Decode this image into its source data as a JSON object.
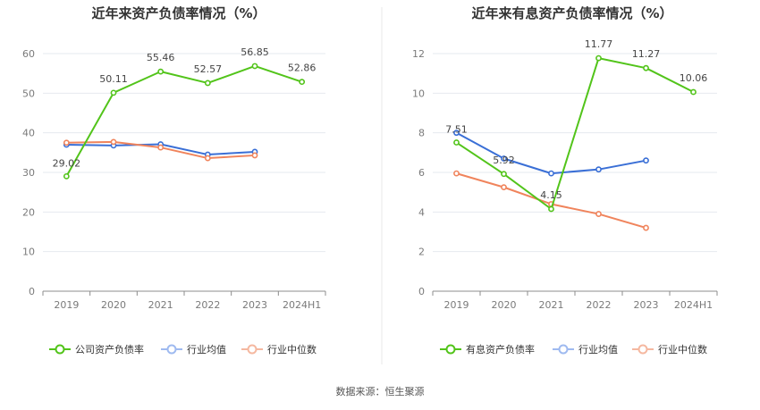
{
  "chart_data": [
    {
      "type": "line",
      "title": "近年来资产负债率情况（%）",
      "categories": [
        "2019",
        "2020",
        "2021",
        "2022",
        "2023",
        "2024H1"
      ],
      "ylim": [
        0,
        60
      ],
      "yticks": [
        0,
        10,
        20,
        30,
        40,
        50,
        60
      ],
      "grid": true,
      "legend_position": "bottom",
      "series": [
        {
          "name": "公司资产负债率",
          "color": "#52c41a",
          "values": [
            29.02,
            50.11,
            55.46,
            52.57,
            56.85,
            52.86
          ],
          "labels": [
            "29.02",
            "50.11",
            "55.46",
            "52.57",
            "56.85",
            "52.86"
          ]
        },
        {
          "name": "行业均值",
          "color": "#3a6fd6",
          "values": [
            37.0,
            36.8,
            37.1,
            34.5,
            35.2,
            null
          ]
        },
        {
          "name": "行业中位数",
          "color": "#f0845c",
          "values": [
            37.5,
            37.7,
            36.3,
            33.6,
            34.3,
            null
          ]
        }
      ]
    },
    {
      "type": "line",
      "title": "近年来有息资产负债率情况（%）",
      "categories": [
        "2019",
        "2020",
        "2021",
        "2022",
        "2023",
        "2024H1"
      ],
      "ylim": [
        0,
        12
      ],
      "yticks": [
        0,
        2,
        4,
        6,
        8,
        10,
        12
      ],
      "grid": true,
      "legend_position": "bottom",
      "series": [
        {
          "name": "有息资产负债率",
          "color": "#52c41a",
          "values": [
            7.51,
            5.92,
            4.15,
            11.77,
            11.27,
            10.06
          ],
          "labels": [
            "7.51",
            "5.92",
            "4.15",
            "11.77",
            "11.27",
            "10.06"
          ]
        },
        {
          "name": "行业均值",
          "color": "#3a6fd6",
          "values": [
            8.0,
            6.7,
            5.95,
            6.15,
            6.6,
            null
          ]
        },
        {
          "name": "行业中位数",
          "color": "#f0845c",
          "values": [
            5.95,
            5.25,
            4.4,
            3.9,
            3.2,
            null
          ]
        }
      ]
    }
  ],
  "footer": {
    "source": "数据来源：恒生聚源"
  }
}
